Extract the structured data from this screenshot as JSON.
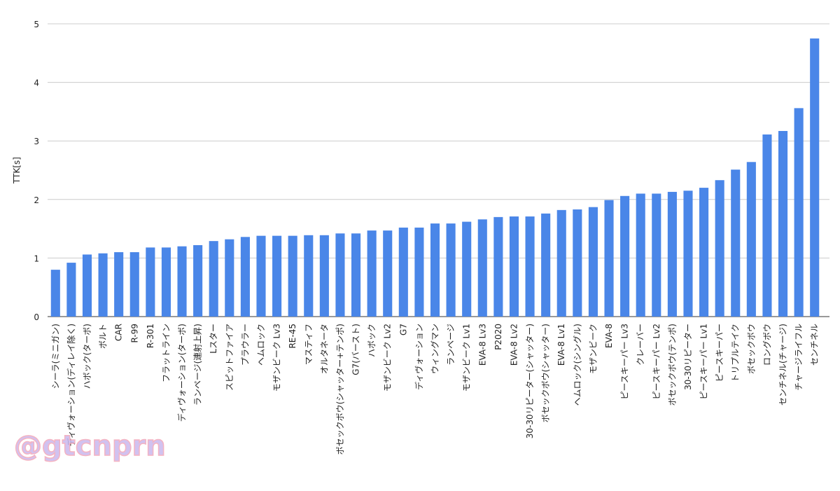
{
  "chart_data": {
    "type": "bar",
    "y_label": "TTK[s]",
    "watermark": "@gtcnprn",
    "color": "#4a86e8",
    "grid": true,
    "ylim": [
      0,
      5
    ],
    "yticks": [
      0,
      1,
      2,
      3,
      4,
      5
    ],
    "categories": [
      "シーラ(ミニガン)",
      "ディヴォーション(ディレイ除く)",
      "ハボック(ターボ)",
      "ボルト",
      "CAR",
      "R-99",
      "R-301",
      "フラットライン",
      "ディヴォーション(ターボ)",
      "ランページ(連射上昇)",
      "Lスター",
      "スピットファイア",
      "プラウラー",
      "ヘムロック",
      "モザンビーク Lv3",
      "RE-45",
      "マスティフ",
      "オルタネータ",
      "ボセックボウ(シャッター+テンポ)",
      "G7(バースト)",
      "ハボック",
      "モザンビーク Lv2",
      "G7",
      "ディヴォーション",
      "ウィングマン",
      "ランページ",
      "モザンビーク Lv1",
      "EVA-8 Lv3",
      "P2020",
      "EVA-8 Lv2",
      "30-30リピーター(シャッター)",
      "ボセックボウ(シャッター)",
      "EVA-8 Lv1",
      "ヘムロック(シングル)",
      "モザンビーク",
      "EVA-8",
      "ピースキーパー Lv3",
      "クレーバー",
      "ピースキーパー Lv2",
      "ボセックボウ(テンポ)",
      "30-30リピーター",
      "ピースキーパー Lv1",
      "ピースキーパー",
      "トリプルテイク",
      "ボセックボウ",
      "ロングボウ",
      "センチネル(チャージ)",
      "チャージライフル",
      "センチネル"
    ],
    "values": [
      0.8,
      0.92,
      1.06,
      1.08,
      1.1,
      1.1,
      1.18,
      1.18,
      1.2,
      1.22,
      1.29,
      1.32,
      1.36,
      1.38,
      1.38,
      1.38,
      1.39,
      1.39,
      1.42,
      1.42,
      1.47,
      1.47,
      1.52,
      1.52,
      1.59,
      1.59,
      1.62,
      1.66,
      1.7,
      1.71,
      1.71,
      1.76,
      1.82,
      1.83,
      1.87,
      1.99,
      2.06,
      2.1,
      2.1,
      2.13,
      2.15,
      2.2,
      2.33,
      2.51,
      2.64,
      3.11,
      3.17,
      3.56,
      4.75
    ]
  }
}
